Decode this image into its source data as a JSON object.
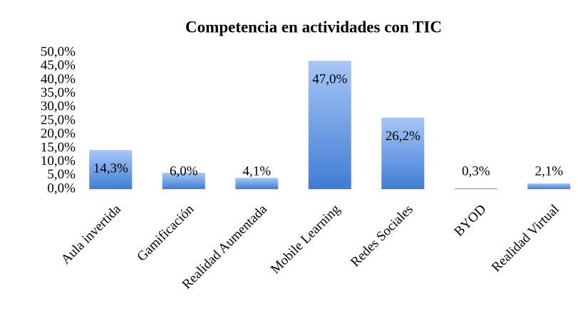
{
  "chart_data": {
    "type": "bar",
    "title": "Competencia en actividades con TIC",
    "categories": [
      "Aula invertida",
      "Gamificación",
      "Realidad Aumentada",
      "Mobile Learning",
      "Redes Sociales",
      "BYOD",
      "Realidad Virtual"
    ],
    "values": [
      14.3,
      6.0,
      4.1,
      47.0,
      26.2,
      0.3,
      2.1
    ],
    "value_labels": [
      "14,3%",
      "6,0%",
      "4,1%",
      "47,0%",
      "26,2%",
      "0,3%",
      "2,1%"
    ],
    "color": "#4f8ddf",
    "ylim": [
      0,
      50
    ],
    "yticks": [
      {
        "value": 0,
        "label": "0,0%"
      },
      {
        "value": 5,
        "label": "5,0%"
      },
      {
        "value": 10,
        "label": "10,0%"
      },
      {
        "value": 15,
        "label": "15,0%"
      },
      {
        "value": 20,
        "label": "20,0%"
      },
      {
        "value": 25,
        "label": "25,0%"
      },
      {
        "value": 30,
        "label": "30,0%"
      },
      {
        "value": 35,
        "label": "35,0%"
      },
      {
        "value": 40,
        "label": "40,0%"
      },
      {
        "value": 45,
        "label": "45,0%"
      },
      {
        "value": 50,
        "label": "50,0%"
      }
    ],
    "grid": false
  }
}
